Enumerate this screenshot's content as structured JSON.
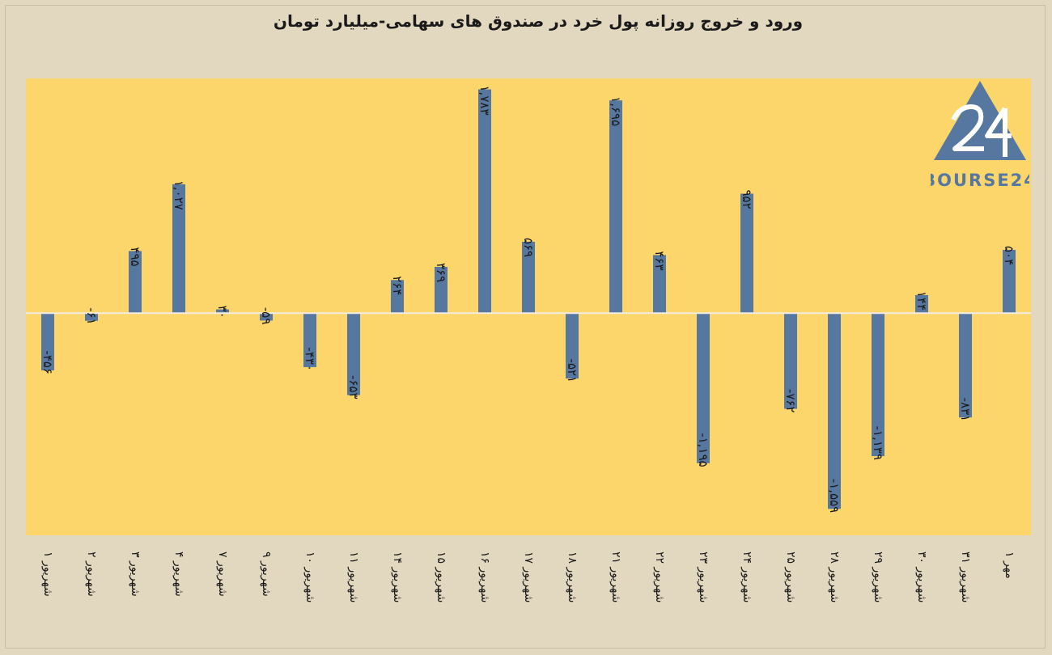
{
  "title": "ورود و خروج روزانه پول خرد در صندوق های سهامی-میلیارد تومان",
  "logo_text": "BOURSE24",
  "colors": {
    "page_bg": "#e2d7bf",
    "plot_bg": "#fcd56b",
    "bar": "#5677a0",
    "zero_line": "#f3ece0",
    "text": "#1a1a1a"
  },
  "chart_data": {
    "type": "bar",
    "title": "ورود و خروج روزانه پول خرد در صندوق های سهامی-میلیارد تومان",
    "xlabel": "",
    "ylabel": "",
    "ylim": [
      -1770,
      1870
    ],
    "grid": false,
    "categories": [
      "۱ شهریور",
      "۲ شهریور",
      "۳ شهریور",
      "۴ شهریور",
      "۷ شهریور",
      "۹ شهریور",
      "۱۰ شهریور",
      "۱۱ شهریور",
      "۱۴ شهریور",
      "۱۵ شهریور",
      "۱۶ شهریور",
      "۱۷ شهریور",
      "۱۸ شهریور",
      "۲۱ شهریور",
      "۲۲ شهریور",
      "۲۳ شهریور",
      "۲۴ شهریور",
      "۲۵ شهریور",
      "۲۸ شهریور",
      "۲۹ شهریور",
      "۳۰ شهریور",
      "۳۱ شهریور",
      "۱ مهر"
    ],
    "values": [
      -456,
      -61,
      495,
      1027,
      30,
      -59,
      -430,
      -653,
      264,
      369,
      1783,
      569,
      -521,
      1695,
      463,
      -1195,
      952,
      -762,
      -1559,
      -1139,
      144,
      -831,
      504
    ],
    "data_labels": [
      "-۴۵۶",
      "-۶۱",
      "۴۹۵",
      "۱,۰۲۷",
      "۳۰",
      "-۵۹",
      "-۴۳۰",
      "-۶۵۳",
      "۲۶۴",
      "۳۶۹",
      "۱,۷۸۳",
      "۵۶۹",
      "-۵۲۱",
      "۱,۶۹۵",
      "۴۶۳",
      "-۱,۱۹۵",
      "۹۵۲",
      "-۷۶۲",
      "-۱,۵۵۹",
      "-۱,۱۳۹",
      "۱۴۴",
      "-۸۳۱",
      "۵۰۴"
    ]
  }
}
